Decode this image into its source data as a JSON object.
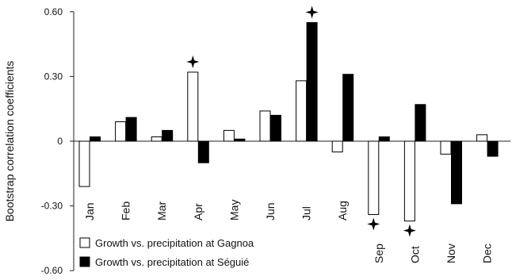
{
  "chart_data": {
    "type": "bar",
    "ylabel": "Bootstrap correlation coefficients",
    "ylim": [
      -0.6,
      0.6
    ],
    "yticks": [
      0.6,
      0.3,
      0,
      -0.3,
      -0.6
    ],
    "ytick_labels": [
      "0.60",
      "0.30",
      "0",
      "-0.30",
      "-0.60"
    ],
    "categories": [
      "Jan",
      "Feb",
      "Mar",
      "Apr",
      "May",
      "Jun",
      "Jul",
      "Aug",
      "Sep",
      "Oct",
      "Nov",
      "Dec"
    ],
    "series": [
      {
        "name": "Growth vs. precipitation at Gagnoa",
        "fill": "#ffffff",
        "values": [
          -0.21,
          0.09,
          0.02,
          0.32,
          0.05,
          0.14,
          0.28,
          -0.05,
          -0.34,
          -0.37,
          -0.06,
          0.03
        ]
      },
      {
        "name": "Growth vs. precipitation at Séguié",
        "fill": "#000000",
        "values": [
          0.02,
          0.11,
          0.05,
          -0.1,
          0.01,
          0.12,
          0.55,
          0.31,
          0.02,
          0.17,
          -0.29,
          -0.07
        ]
      }
    ],
    "significance_markers": [
      {
        "category": "Apr",
        "series": 0
      },
      {
        "category": "Jul",
        "series": 1
      },
      {
        "category": "Sep",
        "series": 0
      },
      {
        "category": "Oct",
        "series": 0
      }
    ],
    "legend_position": "bottom-left",
    "grid": false
  }
}
